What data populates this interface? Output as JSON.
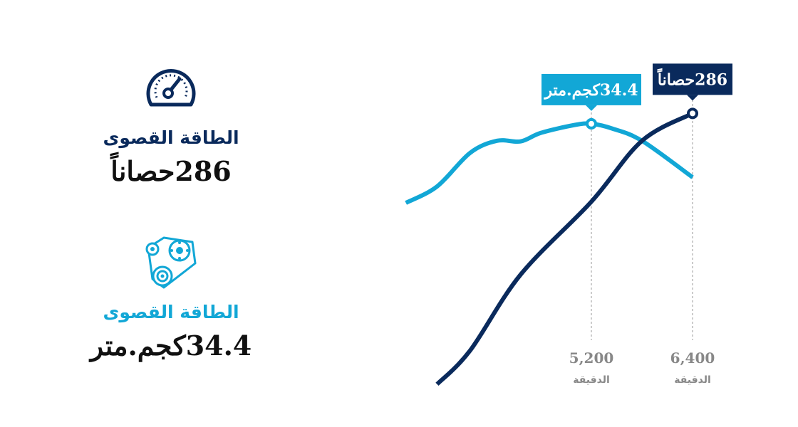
{
  "stats": [
    {
      "label": "الطاقة القصوى",
      "value": "286حصاناً",
      "icon": "speedometer-icon",
      "color": "#0a2a5c"
    },
    {
      "label": "الطاقة القصوى",
      "value": "34.4كجم.متر",
      "icon": "belt-pulley-icon",
      "color": "#12a7d6"
    }
  ],
  "chart_data": {
    "type": "line",
    "series": [
      {
        "id": "torque",
        "color": "#12a7d6",
        "x": [
          3000,
          3370,
          3760,
          4080,
          4360,
          4600,
          5000,
          5200,
          5450,
          5800,
          6400
        ],
        "y": [
          228,
          255,
          310,
          330,
          329,
          343,
          356,
          358,
          350,
          330,
          270
        ]
      },
      {
        "id": "power",
        "color": "#0a2a5c",
        "x": [
          3370,
          3760,
          4360,
          5200,
          5800,
          6400
        ],
        "y": [
          -70,
          -15,
          110,
          230,
          330,
          375
        ]
      }
    ],
    "x_ticks": [
      {
        "value": 5200,
        "label": "5,200",
        "unit": "الدقيقة"
      },
      {
        "value": 6400,
        "label": "6,400",
        "unit": "الدقيقة"
      }
    ],
    "callouts": [
      {
        "series": "torque",
        "x": 5200,
        "y": 358,
        "text": "34.4كجم.متر",
        "color": "#12a7d6"
      },
      {
        "series": "power",
        "x": 6400,
        "y": 375,
        "text": "286حصاناً",
        "color": "#0a2a5c"
      }
    ]
  }
}
